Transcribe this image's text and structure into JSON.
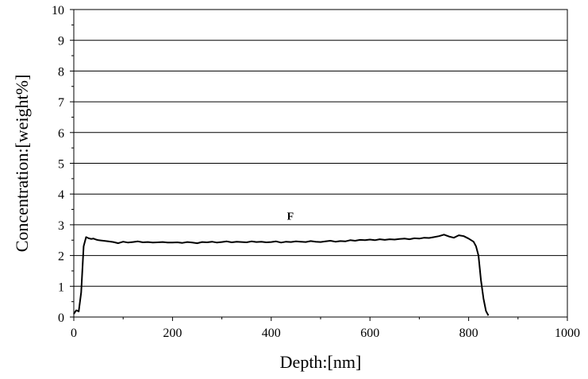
{
  "chart_data": {
    "type": "line",
    "xlabel": "Depth:[nm]",
    "ylabel": "Concentration:[weight%]",
    "xlim": [
      0,
      1000
    ],
    "ylim": [
      0,
      10
    ],
    "x_ticks": [
      0,
      200,
      400,
      600,
      800,
      1000
    ],
    "y_ticks": [
      0,
      1,
      2,
      3,
      4,
      5,
      6,
      7,
      8,
      9,
      10
    ],
    "grid": "horizontal",
    "annotations": [
      {
        "text": "F",
        "x": 440,
        "y": 3.3
      }
    ],
    "series": [
      {
        "color": "#000000",
        "x": [
          0,
          5,
          10,
          15,
          20,
          25,
          30,
          35,
          40,
          45,
          50,
          60,
          70,
          80,
          90,
          100,
          110,
          120,
          130,
          140,
          150,
          160,
          170,
          180,
          190,
          200,
          210,
          220,
          230,
          240,
          250,
          260,
          270,
          280,
          290,
          300,
          310,
          320,
          330,
          340,
          350,
          360,
          370,
          380,
          390,
          400,
          410,
          420,
          430,
          440,
          450,
          460,
          470,
          480,
          490,
          500,
          510,
          520,
          530,
          540,
          550,
          560,
          570,
          580,
          590,
          600,
          610,
          620,
          630,
          640,
          650,
          660,
          670,
          680,
          690,
          700,
          710,
          720,
          730,
          740,
          750,
          760,
          770,
          780,
          790,
          800,
          810,
          815,
          820,
          825,
          830,
          835,
          840
        ],
        "y": [
          0.1,
          0.22,
          0.18,
          0.8,
          2.3,
          2.6,
          2.56,
          2.54,
          2.55,
          2.52,
          2.5,
          2.48,
          2.46,
          2.44,
          2.4,
          2.45,
          2.42,
          2.44,
          2.46,
          2.43,
          2.44,
          2.42,
          2.43,
          2.44,
          2.42,
          2.42,
          2.43,
          2.41,
          2.44,
          2.42,
          2.4,
          2.44,
          2.43,
          2.45,
          2.42,
          2.44,
          2.46,
          2.43,
          2.45,
          2.44,
          2.43,
          2.46,
          2.44,
          2.45,
          2.43,
          2.44,
          2.46,
          2.42,
          2.45,
          2.44,
          2.46,
          2.45,
          2.44,
          2.47,
          2.45,
          2.44,
          2.46,
          2.48,
          2.45,
          2.47,
          2.46,
          2.5,
          2.48,
          2.51,
          2.5,
          2.52,
          2.5,
          2.53,
          2.51,
          2.53,
          2.52,
          2.54,
          2.55,
          2.53,
          2.56,
          2.55,
          2.58,
          2.57,
          2.6,
          2.63,
          2.68,
          2.62,
          2.58,
          2.66,
          2.63,
          2.55,
          2.45,
          2.3,
          2.0,
          1.2,
          0.6,
          0.2,
          0.05
        ]
      }
    ]
  }
}
